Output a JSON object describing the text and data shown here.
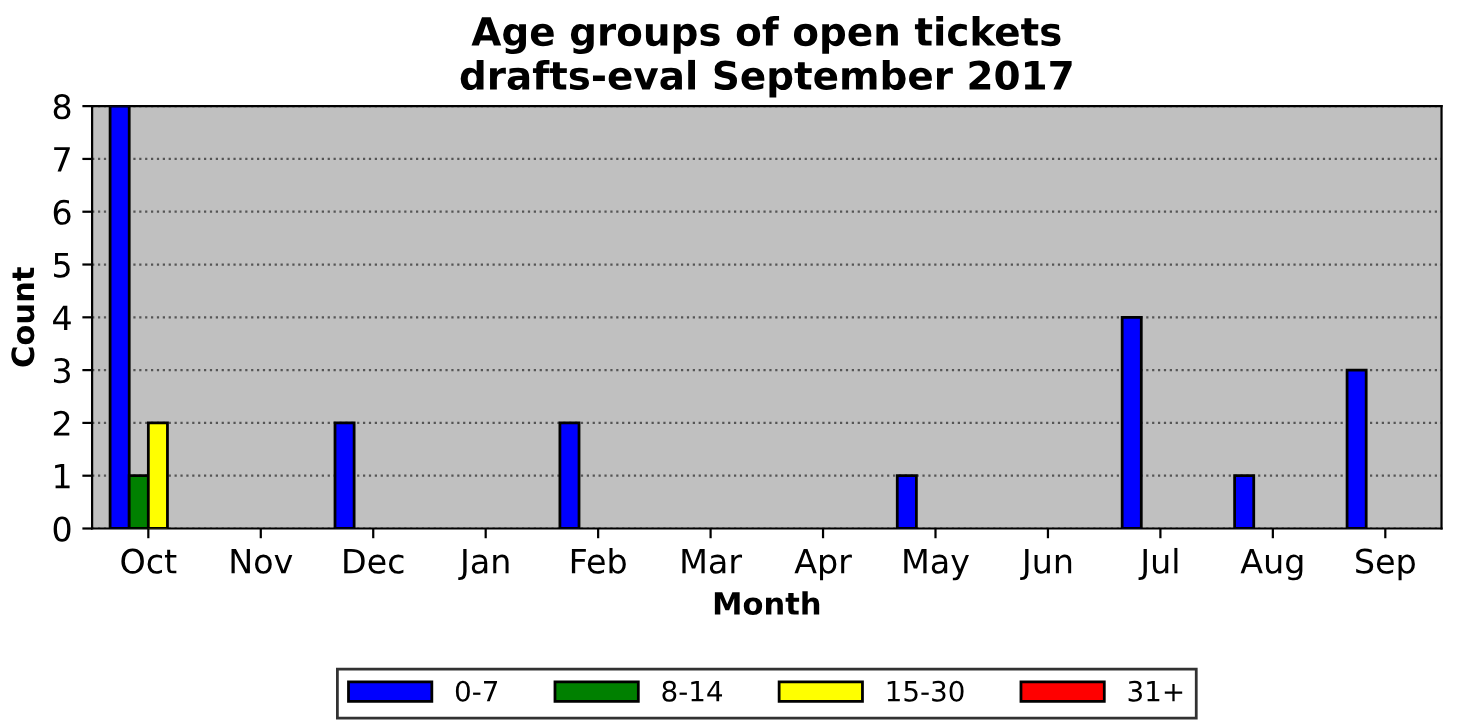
{
  "chart_data": {
    "type": "bar",
    "title": "Age groups of open tickets\ndrafts-eval September 2017",
    "xlabel": "Month",
    "ylabel": "Count",
    "categories": [
      "Oct",
      "Nov",
      "Dec",
      "Jan",
      "Feb",
      "Mar",
      "Apr",
      "May",
      "Jun",
      "Jul",
      "Aug",
      "Sep"
    ],
    "series": [
      {
        "name": "0-7",
        "color": "#0000ff",
        "values": [
          8,
          0,
          2,
          0,
          2,
          0,
          0,
          1,
          0,
          4,
          1,
          3
        ]
      },
      {
        "name": "8-14",
        "color": "#008000",
        "values": [
          1,
          0,
          0,
          0,
          0,
          0,
          0,
          0,
          0,
          0,
          0,
          0
        ]
      },
      {
        "name": "15-30",
        "color": "#ffff00",
        "values": [
          2,
          0,
          0,
          0,
          0,
          0,
          0,
          0,
          0,
          0,
          0,
          0
        ]
      },
      {
        "name": "31+",
        "color": "#ff0000",
        "values": [
          0,
          0,
          0,
          0,
          0,
          0,
          0,
          0,
          0,
          0,
          0,
          0
        ]
      }
    ],
    "ylim": [
      0,
      8
    ],
    "yticks": [
      0,
      1,
      2,
      3,
      4,
      5,
      6,
      7,
      8
    ],
    "grid": "y",
    "legend": "bottom"
  }
}
